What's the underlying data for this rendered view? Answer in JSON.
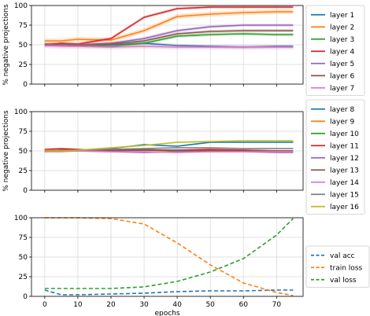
{
  "chart_data": [
    {
      "type": "line",
      "ylabel": "% negative projections",
      "xlabel": "",
      "xlim": [
        -4,
        78
      ],
      "ylim": [
        0,
        100
      ],
      "yticks": [
        0,
        25,
        50,
        75,
        100
      ],
      "xticks": [
        0,
        10,
        20,
        30,
        40,
        50,
        60,
        70
      ],
      "show_xtick_labels": false,
      "grid": true,
      "legend_position": "right",
      "x": [
        0,
        5,
        10,
        20,
        30,
        40,
        50,
        60,
        70,
        75
      ],
      "series": [
        {
          "name": "layer 1",
          "color": "#1f77b4",
          "values": [
            51,
            50,
            49,
            50,
            52,
            49,
            48,
            47,
            48,
            48
          ],
          "band": 2
        },
        {
          "name": "layer 2",
          "color": "#ff7f0e",
          "values": [
            55,
            55,
            57,
            56,
            68,
            86,
            89,
            91,
            92,
            92
          ],
          "band": 3
        },
        {
          "name": "layer 3",
          "color": "#2ca02c",
          "values": [
            50,
            50,
            49,
            48,
            52,
            61,
            63,
            64,
            63,
            63
          ],
          "band": 2
        },
        {
          "name": "layer 4",
          "color": "#d62728",
          "values": [
            50,
            52,
            51,
            58,
            85,
            96,
            98,
            98,
            98,
            98
          ],
          "band": 2
        },
        {
          "name": "layer 5",
          "color": "#9467bd",
          "values": [
            49,
            50,
            50,
            52,
            58,
            68,
            73,
            75,
            75,
            75
          ],
          "band": 2
        },
        {
          "name": "layer 6",
          "color": "#8c564b",
          "values": [
            50,
            51,
            50,
            51,
            55,
            64,
            67,
            68,
            68,
            68
          ],
          "band": 2
        },
        {
          "name": "layer 7",
          "color": "#e377c2",
          "values": [
            49,
            48,
            48,
            47,
            48,
            47,
            47,
            47,
            47,
            47
          ],
          "band": 3
        }
      ]
    },
    {
      "type": "line",
      "ylabel": "% negative projections",
      "xlabel": "",
      "xlim": [
        -4,
        78
      ],
      "ylim": [
        0,
        100
      ],
      "yticks": [
        0,
        25,
        50,
        75,
        100
      ],
      "xticks": [
        0,
        10,
        20,
        30,
        40,
        50,
        60,
        70
      ],
      "show_xtick_labels": false,
      "grid": true,
      "legend_position": "right",
      "x": [
        0,
        5,
        10,
        20,
        30,
        40,
        50,
        60,
        70,
        75
      ],
      "series": [
        {
          "name": "layer 8",
          "color": "#1f77b4",
          "values": [
            50,
            51,
            51,
            53,
            58,
            56,
            61,
            61,
            61,
            61
          ],
          "band": 1
        },
        {
          "name": "layer 9",
          "color": "#ff7f0e",
          "values": [
            50,
            51,
            51,
            51,
            51,
            50,
            51,
            50,
            49,
            49
          ],
          "band": 1
        },
        {
          "name": "layer 10",
          "color": "#2ca02c",
          "values": [
            50,
            50,
            50,
            51,
            52,
            50,
            51,
            51,
            50,
            50
          ],
          "band": 1
        },
        {
          "name": "layer 11",
          "color": "#d62728",
          "values": [
            52,
            53,
            52,
            50,
            51,
            51,
            52,
            51,
            50,
            50
          ],
          "band": 1
        },
        {
          "name": "layer 12",
          "color": "#9467bd",
          "values": [
            49,
            50,
            50,
            49,
            48,
            49,
            49,
            49,
            48,
            48
          ],
          "band": 1
        },
        {
          "name": "layer 13",
          "color": "#8c564b",
          "values": [
            50,
            51,
            51,
            51,
            51,
            51,
            50,
            50,
            50,
            50
          ],
          "band": 1
        },
        {
          "name": "layer 14",
          "color": "#e377c2",
          "values": [
            49,
            49,
            50,
            49,
            49,
            48,
            49,
            49,
            49,
            49
          ],
          "band": 1
        },
        {
          "name": "layer 15",
          "color": "#7f7f7f",
          "values": [
            50,
            50,
            51,
            52,
            53,
            54,
            54,
            53,
            53,
            53
          ],
          "band": 1
        },
        {
          "name": "layer 16",
          "color": "#bcbd22",
          "values": [
            50,
            50,
            51,
            54,
            57,
            61,
            62,
            63,
            63,
            63
          ],
          "band": 1
        }
      ]
    },
    {
      "type": "line",
      "ylabel": "",
      "xlabel": "epochs",
      "xlim": [
        -4,
        78
      ],
      "ylim": [
        0,
        100
      ],
      "yticks": [
        0,
        25,
        50,
        75,
        100
      ],
      "xticks": [
        0,
        10,
        20,
        30,
        40,
        50,
        60,
        70
      ],
      "show_xtick_labels": true,
      "grid": true,
      "legend_position": "right",
      "line_style": "dashed",
      "x": [
        0,
        5,
        10,
        20,
        30,
        40,
        50,
        60,
        70,
        75
      ],
      "series": [
        {
          "name": "val acc",
          "color": "#1f77b4",
          "values": [
            8,
            2,
            2,
            3,
            4,
            6,
            7,
            7,
            8,
            8
          ],
          "band": 0
        },
        {
          "name": "train loss",
          "color": "#ff7f0e",
          "values": [
            100,
            100,
            100,
            99,
            92,
            68,
            40,
            17,
            5,
            1
          ],
          "band": 0
        },
        {
          "name": "val loss",
          "color": "#2ca02c",
          "values": [
            10,
            10,
            10,
            10,
            12,
            19,
            31,
            48,
            78,
            99
          ],
          "band": 0
        }
      ]
    }
  ]
}
